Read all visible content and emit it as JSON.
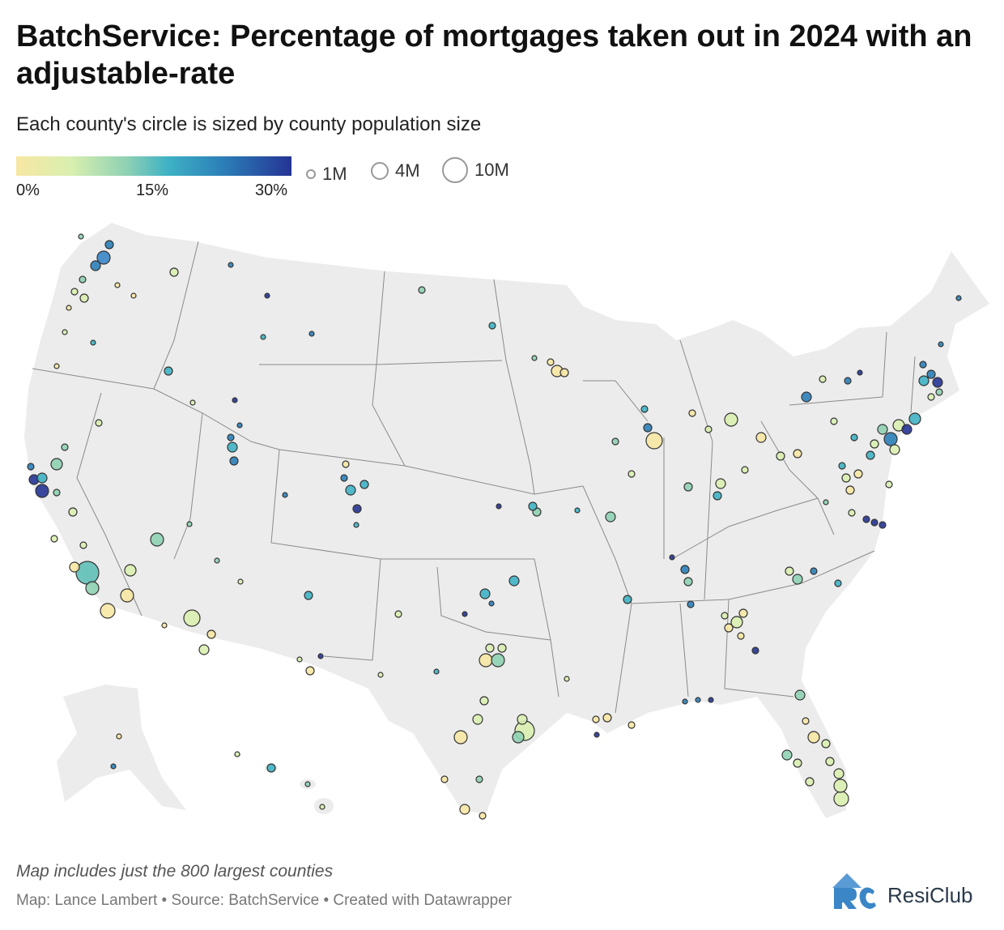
{
  "header": {
    "title": "BatchService: Percentage of mortgages taken out in 2024 with an adjustable-rate",
    "subtitle": "Each county's circle is sized by county population size"
  },
  "legend": {
    "color_ticks": [
      "0%",
      "15%",
      "30%"
    ],
    "color_scale": [
      "#f7e7a3",
      "#8fd1b3",
      "#3fb2c4",
      "#2c7fb8",
      "#253494"
    ],
    "sizes": [
      "1M",
      "4M",
      "10M"
    ]
  },
  "footer": {
    "note": "Map includes just the 800 largest counties",
    "credit": "Map: Lance Lambert • Source: BatchService • Created with Datawrapper",
    "brand": "ResiClub"
  },
  "colors": {
    "land": "#ececec",
    "borders": "#8a8a8a",
    "accent_blue": "#3a86c6"
  }
}
